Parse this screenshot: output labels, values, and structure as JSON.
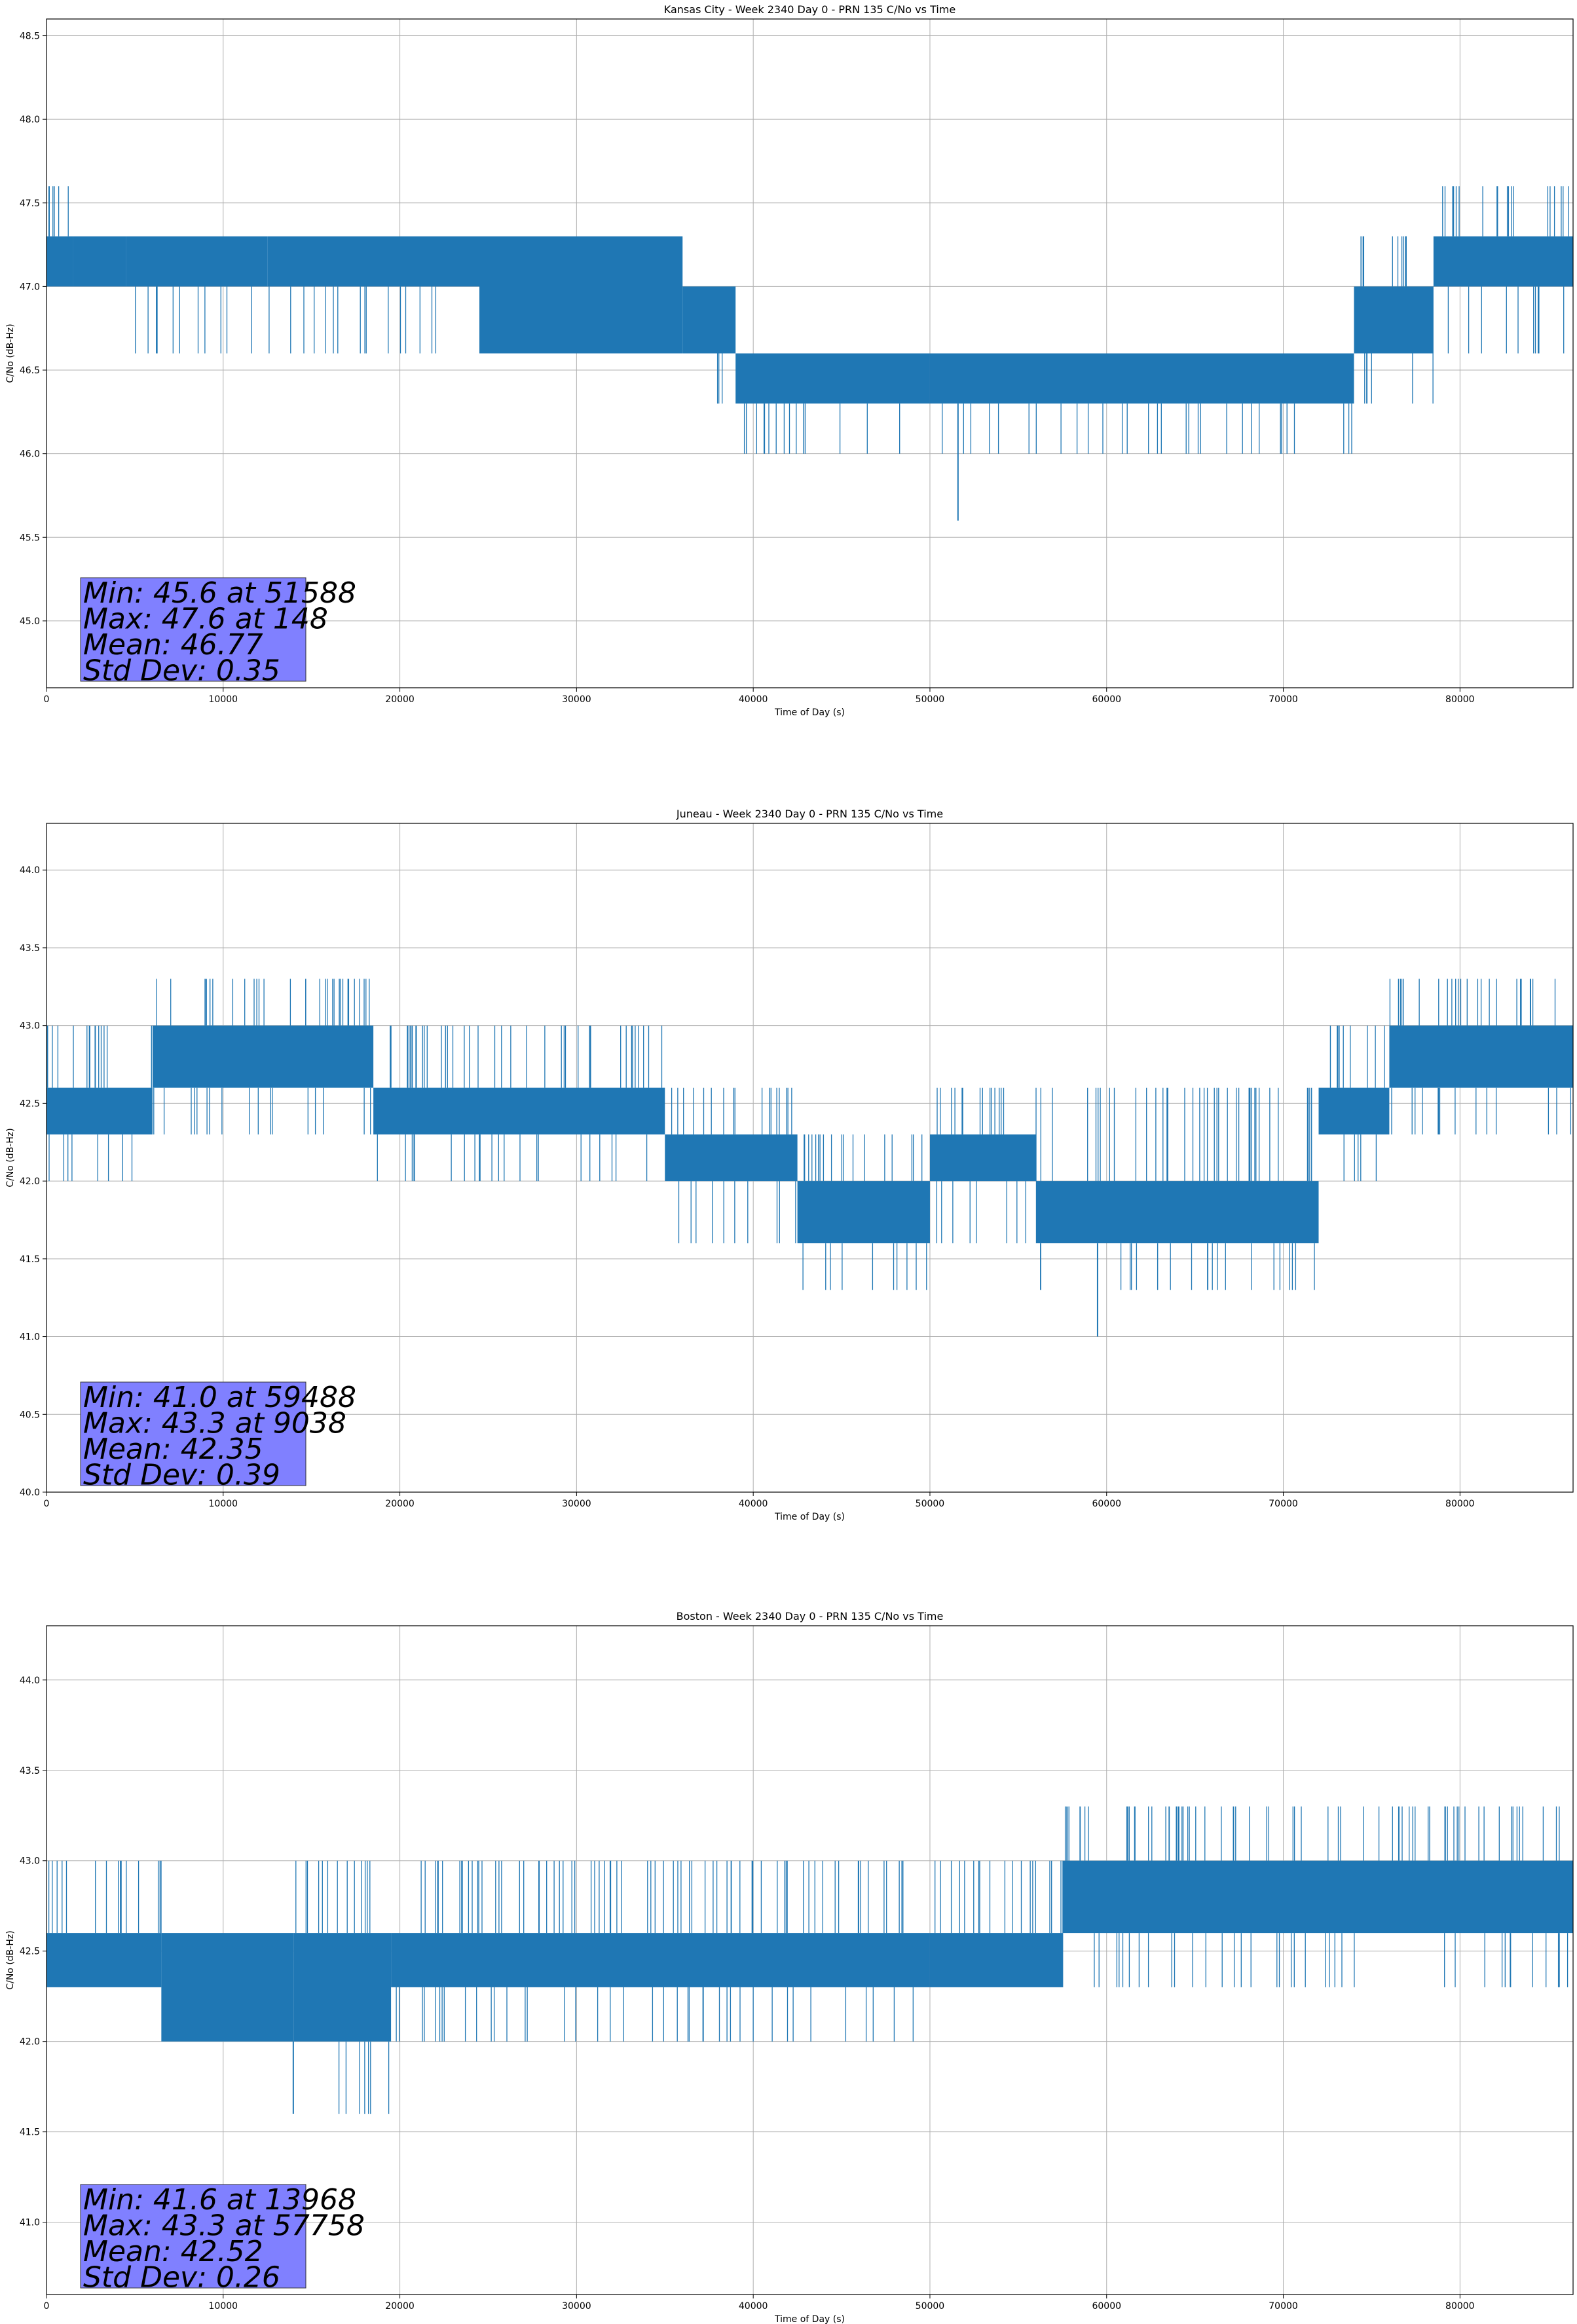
{
  "chart_data": [
    {
      "type": "line",
      "title": "Kansas City - Week 2340 Day 0 - PRN 135 C/No vs Time",
      "xlabel": "Time of Day (s)",
      "ylabel": "C/No (dB-Hz)",
      "xlim": [
        0,
        86400
      ],
      "ylim": [
        44.6,
        48.6
      ],
      "xticks": [
        0,
        10000,
        20000,
        30000,
        40000,
        50000,
        60000,
        70000,
        80000
      ],
      "yticks": [
        45.0,
        45.5,
        46.0,
        46.5,
        47.0,
        47.5,
        48.0,
        48.5
      ],
      "grid": true,
      "series_color": "#1f77b4",
      "segments": [
        {
          "x": [
            0,
            1500
          ],
          "band": [
            47.0,
            47.3
          ],
          "up": 47.6,
          "down": 47.0
        },
        {
          "x": [
            1500,
            4500
          ],
          "band": [
            47.0,
            47.3
          ],
          "up": 47.3,
          "down": 47.0
        },
        {
          "x": [
            4500,
            12500
          ],
          "band": [
            47.0,
            47.3
          ],
          "up": 47.3,
          "down": 46.6
        },
        {
          "x": [
            12500,
            24500
          ],
          "band": [
            47.0,
            47.3
          ],
          "up": 47.3,
          "down": 46.6
        },
        {
          "x": [
            24500,
            36000
          ],
          "band": [
            46.6,
            47.3
          ],
          "up": 47.3,
          "down": 46.6
        },
        {
          "x": [
            36000,
            39000
          ],
          "band": [
            46.6,
            47.0
          ],
          "up": 47.0,
          "down": 46.3
        },
        {
          "x": [
            39000,
            50000
          ],
          "band": [
            46.3,
            46.6
          ],
          "up": 46.6,
          "down": 46.0
        },
        {
          "x": [
            50000,
            74000
          ],
          "band": [
            46.3,
            46.6
          ],
          "up": 46.6,
          "down": 46.0
        },
        {
          "x": [
            74000,
            78500
          ],
          "band": [
            46.6,
            47.0
          ],
          "up": 47.3,
          "down": 46.3
        },
        {
          "x": [
            78500,
            86400
          ],
          "band": [
            47.0,
            47.3
          ],
          "up": 47.6,
          "down": 46.6
        }
      ],
      "spikes": [
        {
          "x": 51588,
          "y": 45.6
        },
        {
          "x": 148,
          "y": 47.6
        }
      ],
      "stats": {
        "min": "Min: 45.6 at 51588",
        "max": "Max: 47.6 at 148",
        "mean": "Mean: 46.77",
        "std": "Std Dev: 0.35"
      },
      "stats_box_color": "#8080ff"
    },
    {
      "type": "line",
      "title": "Juneau - Week 2340 Day 0 - PRN 135 C/No vs Time",
      "xlabel": "Time of Day (s)",
      "ylabel": "C/No (dB-Hz)",
      "xlim": [
        0,
        86400
      ],
      "ylim": [
        40.0,
        44.3
      ],
      "xticks": [
        0,
        10000,
        20000,
        30000,
        40000,
        50000,
        60000,
        70000,
        80000
      ],
      "yticks": [
        40.0,
        40.5,
        41.0,
        41.5,
        42.0,
        42.5,
        43.0,
        43.5,
        44.0
      ],
      "grid": true,
      "series_color": "#1f77b4",
      "segments": [
        {
          "x": [
            0,
            6000
          ],
          "band": [
            42.3,
            42.6
          ],
          "up": 43.0,
          "down": 42.0
        },
        {
          "x": [
            6000,
            18500
          ],
          "band": [
            42.6,
            43.0
          ],
          "up": 43.3,
          "down": 42.3
        },
        {
          "x": [
            18500,
            35000
          ],
          "band": [
            42.3,
            42.6
          ],
          "up": 43.0,
          "down": 42.0
        },
        {
          "x": [
            35000,
            42500
          ],
          "band": [
            42.0,
            42.3
          ],
          "up": 42.6,
          "down": 41.6
        },
        {
          "x": [
            42500,
            50000
          ],
          "band": [
            41.6,
            42.0
          ],
          "up": 42.3,
          "down": 41.3
        },
        {
          "x": [
            50000,
            56000
          ],
          "band": [
            42.0,
            42.3
          ],
          "up": 42.6,
          "down": 41.6
        },
        {
          "x": [
            56000,
            72000
          ],
          "band": [
            41.6,
            42.0
          ],
          "up": 42.6,
          "down": 41.3
        },
        {
          "x": [
            72000,
            76000
          ],
          "band": [
            42.3,
            42.6
          ],
          "up": 43.0,
          "down": 42.0
        },
        {
          "x": [
            76000,
            86400
          ],
          "band": [
            42.6,
            43.0
          ],
          "up": 43.3,
          "down": 42.3
        }
      ],
      "spikes": [
        {
          "x": 59488,
          "y": 41.0
        },
        {
          "x": 9038,
          "y": 43.3
        }
      ],
      "stats": {
        "min": "Min: 41.0 at 59488",
        "max": "Max: 43.3 at 9038",
        "mean": "Mean: 42.35",
        "std": "Std Dev: 0.39"
      },
      "stats_box_color": "#8080ff"
    },
    {
      "type": "line",
      "title": "Boston - Week 2340 Day 0 - PRN 135 C/No vs Time",
      "xlabel": "Time of Day (s)",
      "ylabel": "C/No (dB-Hz)",
      "xlim": [
        0,
        86400
      ],
      "ylim": [
        40.6,
        44.3
      ],
      "xticks": [
        0,
        10000,
        20000,
        30000,
        40000,
        50000,
        60000,
        70000,
        80000
      ],
      "yticks": [
        41.0,
        41.5,
        42.0,
        42.5,
        43.0,
        43.5,
        44.0
      ],
      "grid": true,
      "series_color": "#1f77b4",
      "segments": [
        {
          "x": [
            0,
            6500
          ],
          "band": [
            42.3,
            42.6
          ],
          "up": 43.0,
          "down": 42.3
        },
        {
          "x": [
            6500,
            14000
          ],
          "band": [
            42.0,
            42.6
          ],
          "up": 42.6,
          "down": 42.0
        },
        {
          "x": [
            14000,
            19500
          ],
          "band": [
            42.0,
            42.6
          ],
          "up": 43.0,
          "down": 41.6
        },
        {
          "x": [
            19500,
            50000
          ],
          "band": [
            42.3,
            42.6
          ],
          "up": 43.0,
          "down": 42.0
        },
        {
          "x": [
            50000,
            57500
          ],
          "band": [
            42.3,
            42.6
          ],
          "up": 43.0,
          "down": 42.3
        },
        {
          "x": [
            57500,
            86400
          ],
          "band": [
            42.6,
            43.0
          ],
          "up": 43.3,
          "down": 42.3
        }
      ],
      "spikes": [
        {
          "x": 13968,
          "y": 41.6
        },
        {
          "x": 57758,
          "y": 43.3
        }
      ],
      "stats": {
        "min": "Min: 41.6 at 13968",
        "max": "Max: 43.3 at 57758",
        "mean": "Mean: 42.52",
        "std": "Std Dev: 0.26"
      },
      "stats_box_color": "#8080ff"
    }
  ]
}
